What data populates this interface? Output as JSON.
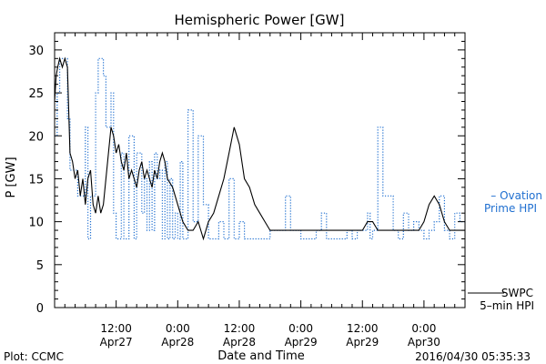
{
  "chart_data": {
    "type": "line",
    "title": "Hemispheric Power [GW]",
    "ylabel": "P [GW]",
    "xlabel": "Date and Time",
    "ylim": [
      0,
      32
    ],
    "yticks": [
      0,
      5,
      10,
      15,
      20,
      25,
      30
    ],
    "xlim": [
      0,
      80
    ],
    "xticks": [
      {
        "x": 12,
        "time": "12:00",
        "date": "Apr27"
      },
      {
        "x": 24,
        "time": "0:00",
        "date": "Apr28"
      },
      {
        "x": 36,
        "time": "12:00",
        "date": "Apr28"
      },
      {
        "x": 48,
        "time": "0:00",
        "date": "Apr29"
      },
      {
        "x": 60,
        "time": "12:00",
        "date": "Apr29"
      },
      {
        "x": 72,
        "time": "0:00",
        "date": "Apr30"
      }
    ],
    "grid": false,
    "colors": {
      "ovation": "#1f6fd0",
      "swpc": "#000000",
      "frame": "#000000"
    },
    "legend": {
      "ovation_label_1": "– Ovation",
      "ovation_label_2": "Prime HPI",
      "swpc_label_1": "SWPC",
      "swpc_label_2": "5–min HPI"
    },
    "series": [
      {
        "key": "ovation",
        "style": "step-dotted",
        "x": [
          0,
          0.5,
          1,
          2.5,
          3,
          4,
          4.5,
          6,
          6.5,
          7,
          8,
          8.5,
          9.5,
          10,
          11,
          11.5,
          12,
          13,
          13.5,
          14.5,
          15.5,
          16,
          17,
          17.5,
          18,
          18.5,
          19,
          19.5,
          20,
          20.5,
          21,
          21.5,
          22,
          22.5,
          23,
          23.5,
          24,
          24.5,
          25,
          26,
          27,
          28,
          29,
          30,
          30.5,
          31,
          32,
          33,
          34,
          35,
          36,
          37,
          37.5,
          38,
          39,
          40,
          41,
          42,
          43,
          44,
          45,
          46,
          47,
          48,
          51,
          52,
          53,
          56,
          57,
          58,
          59,
          60,
          61,
          61.5,
          62,
          63,
          64,
          65,
          66,
          67,
          68,
          69,
          70,
          71,
          72,
          73,
          74,
          75,
          76,
          77,
          78,
          79,
          80
        ],
        "y": [
          20,
          25,
          29,
          22,
          16,
          16,
          13,
          21,
          8,
          13,
          25,
          29,
          27,
          21,
          25,
          11,
          8,
          18,
          8,
          20,
          8,
          18,
          11,
          15,
          9,
          17,
          9,
          18,
          15,
          16,
          8,
          17,
          8,
          15,
          8,
          11,
          8,
          17,
          8,
          23,
          10,
          20,
          12,
          8,
          8,
          8,
          10,
          8,
          15,
          8,
          10,
          8,
          8,
          8,
          8,
          8,
          8,
          9,
          9,
          9,
          13,
          9,
          9,
          8,
          9,
          11,
          8,
          8,
          9,
          8,
          9,
          9,
          11,
          8,
          9,
          21,
          13,
          13,
          9,
          8,
          11,
          9,
          10,
          9,
          8,
          9,
          10,
          13,
          9,
          8,
          11,
          10,
          10
        ]
      },
      {
        "key": "swpc",
        "style": "solid",
        "x": [
          0,
          0.3,
          0.6,
          1,
          1.5,
          2,
          2.5,
          3,
          3.5,
          4,
          4.5,
          5,
          5.5,
          6,
          6.5,
          7,
          7.5,
          8,
          8.5,
          9,
          9.5,
          10,
          10.5,
          11,
          11.5,
          12,
          12.5,
          13,
          13.5,
          14,
          14.5,
          15,
          15.5,
          16,
          16.5,
          17,
          17.5,
          18,
          18.5,
          19,
          19.5,
          20,
          20.5,
          21,
          21.5,
          22,
          23,
          24,
          25,
          26,
          27,
          28,
          29,
          30,
          31,
          32,
          33,
          34,
          35,
          36,
          36.5,
          37,
          38,
          39,
          40,
          41,
          42,
          43,
          44,
          45,
          46,
          48,
          52,
          56,
          60,
          61,
          62,
          63,
          64,
          65,
          66,
          67,
          68,
          69,
          70,
          71,
          72,
          73,
          74,
          75,
          76,
          77,
          78,
          80
        ],
        "y": [
          24,
          27,
          28,
          29,
          28,
          29,
          28,
          18,
          17,
          15,
          16,
          13,
          15,
          12,
          15,
          16,
          12,
          11,
          13,
          11,
          12,
          15,
          18,
          21,
          20,
          18,
          19,
          17,
          16,
          18,
          15,
          16,
          15,
          14,
          16,
          17,
          15,
          16,
          15,
          14,
          16,
          15,
          17,
          18,
          17,
          15,
          14,
          12,
          10,
          9,
          9,
          10,
          8,
          10,
          11,
          13,
          15,
          18,
          21,
          19,
          17,
          15,
          14,
          12,
          11,
          10,
          9,
          9,
          9,
          9,
          9,
          9,
          9,
          9,
          9,
          10,
          10,
          9,
          9,
          9,
          9,
          9,
          9,
          9,
          9,
          9,
          10,
          12,
          13,
          12,
          10,
          9,
          9,
          9
        ]
      }
    ]
  },
  "footer": {
    "plot_credit": "Plot: CCMC",
    "timestamp": "2016/04/30 05:35:33"
  }
}
